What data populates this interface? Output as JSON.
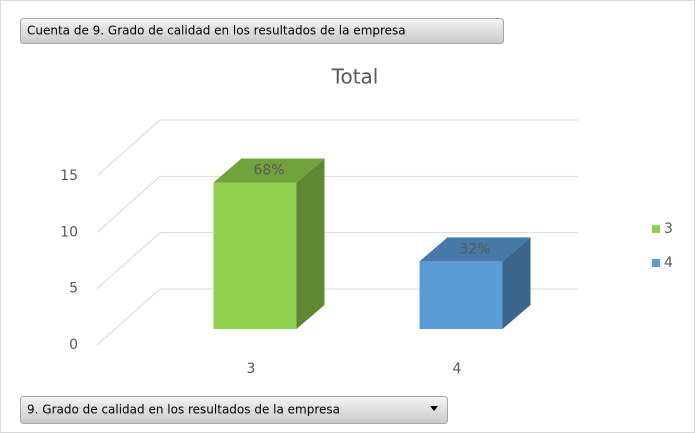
{
  "chart_data": {
    "type": "bar3d",
    "title": "Total",
    "filter_button": "Cuenta de 9.  Grado de calidad en los resultados de la empresa",
    "axis_button": "9.  Grado de calidad en los resultados de la empresa",
    "categories": [
      "3",
      "4"
    ],
    "series": [
      {
        "name": "3",
        "color": "#92d050",
        "values": [
          13,
          null
        ]
      },
      {
        "name": "4",
        "color": "#5b9bd5",
        "values": [
          null,
          6
        ]
      }
    ],
    "percentages": [
      68,
      32
    ],
    "percentage_labels": [
      "68%",
      "32%"
    ],
    "ylim": [
      0,
      15
    ],
    "yticks": [
      0,
      5,
      10,
      15
    ],
    "grid": true,
    "legend": "right"
  }
}
